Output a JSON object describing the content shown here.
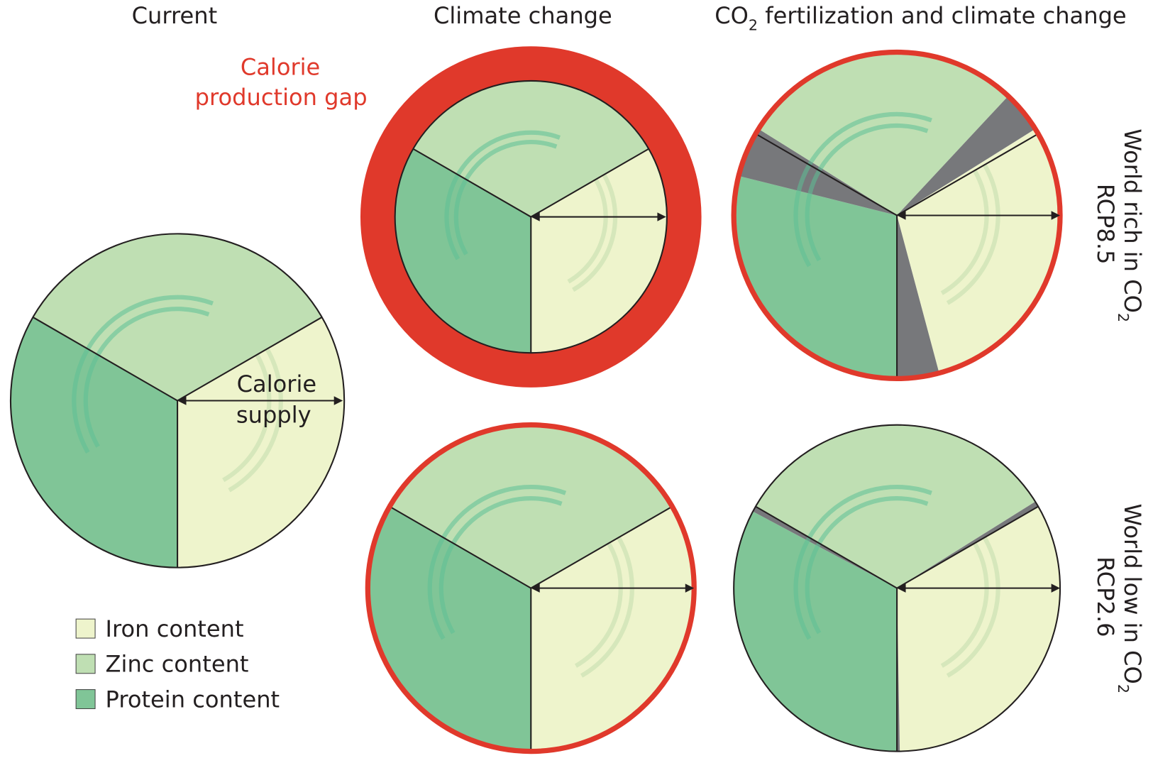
{
  "columns": {
    "current": "Current",
    "climate": "Climate change",
    "co2": {
      "pre": "CO",
      "sub": "2",
      "post": " fertilization and climate change"
    }
  },
  "rows": {
    "rich": {
      "line1_pre": "World rich in CO",
      "line1_sub": "2",
      "line2": "RCP8.5"
    },
    "low": {
      "line1_pre": "World low in CO",
      "line1_sub": "2",
      "line2": "RCP2.6"
    }
  },
  "gap_label": {
    "line1": "Calorie",
    "line2": "production gap"
  },
  "supply_label": {
    "line1": "Calorie",
    "line2": "supply"
  },
  "legend": [
    "Iron content",
    "Zinc content",
    "Protein content"
  ]
}
